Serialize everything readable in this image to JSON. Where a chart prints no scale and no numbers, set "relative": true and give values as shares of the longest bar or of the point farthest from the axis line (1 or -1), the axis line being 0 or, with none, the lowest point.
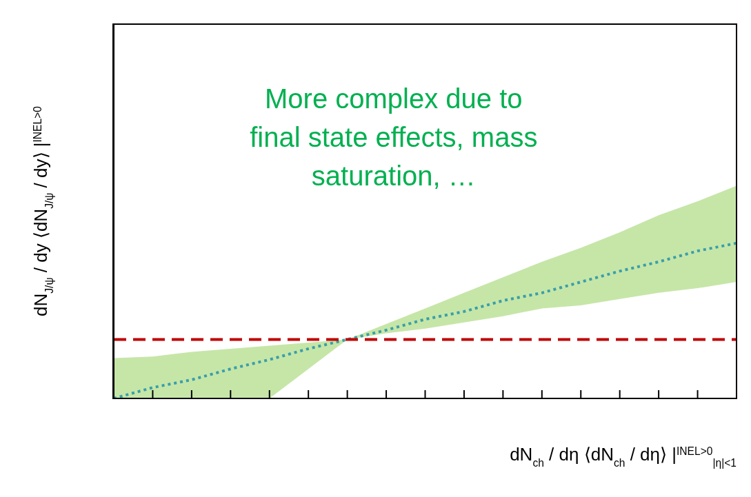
{
  "chart_data": {
    "type": "line",
    "relative": true,
    "grid": false,
    "legend": false,
    "xlabel": "dN$_{ch}$ / dη  ⟨dN$_{ch}$ / dη⟩ |$^{INEL>0}$$_{|η|<1}$",
    "ylabel": "dN$_{J/ψ}$ / dy  ⟨dN$_{J/ψ}$ / dy⟩ |$^{INEL>0}$",
    "annotations": [
      "More complex due to final state effects, mass saturation, …"
    ],
    "categories": [
      null,
      null,
      null,
      null,
      null,
      null,
      null,
      null,
      null,
      null,
      null,
      null,
      null,
      null,
      null,
      null,
      null
    ],
    "series": [
      {
        "color": "#3a9fa8",
        "line_style": "dotted",
        "values": [
          0,
          0.07,
          0.12,
          0.19,
          0.25,
          0.32,
          0.38,
          0.44,
          0.51,
          0.56,
          0.63,
          0.68,
          0.75,
          0.82,
          0.88,
          0.95,
          1
        ],
        "lower": [
          0,
          0,
          0,
          0,
          0,
          0.19,
          0.38,
          0.42,
          0.45,
          0.49,
          0.53,
          0.58,
          0.6,
          0.64,
          0.68,
          0.71,
          0.75
        ],
        "upper": [
          0.26,
          0.27,
          0.3,
          0.32,
          0.34,
          0.36,
          0.38,
          0.48,
          0.58,
          0.68,
          0.78,
          0.88,
          0.97,
          1.07,
          1.18,
          1.27,
          1.37
        ]
      }
    ],
    "ref_lines": [
      {
        "axis": "y",
        "value": 0.38,
        "color": "#c00000",
        "line_style": "dashed"
      }
    ]
  }
}
